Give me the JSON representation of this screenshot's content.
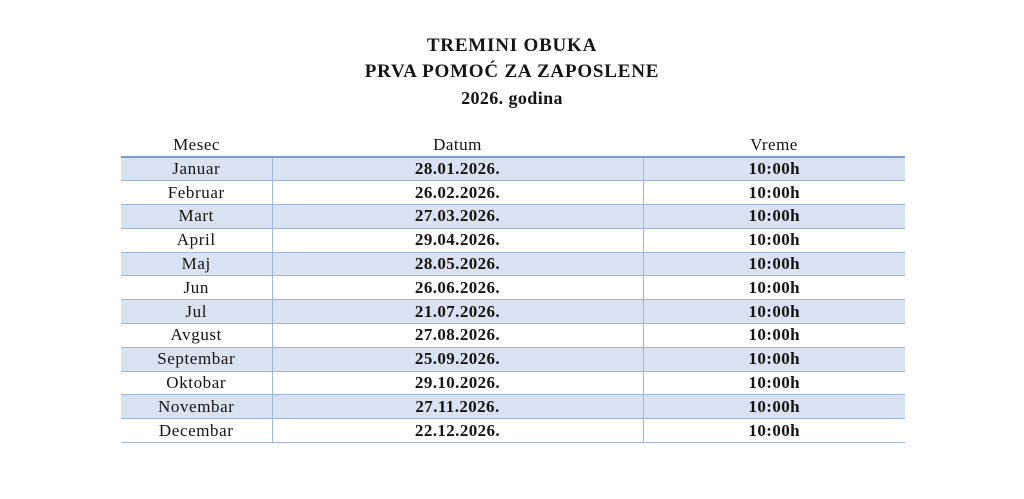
{
  "document": {
    "title_lines": [
      "TREMINI OBUKA",
      "PRVA POMOĆ ZA ZAPOSLENE",
      "2026. godina"
    ]
  },
  "table": {
    "columns": [
      "Mesec",
      "Datum",
      "Vreme"
    ],
    "rows": [
      {
        "month": "Januar",
        "date": "28.01.2026.",
        "time": "10:00h"
      },
      {
        "month": "Februar",
        "date": "26.02.2026.",
        "time": "10:00h"
      },
      {
        "month": "Mart",
        "date": "27.03.2026.",
        "time": "10:00h"
      },
      {
        "month": "April",
        "date": "29.04.2026.",
        "time": "10:00h"
      },
      {
        "month": "Maj",
        "date": "28.05.2026.",
        "time": "10:00h"
      },
      {
        "month": "Jun",
        "date": "26.06.2026.",
        "time": "10:00h"
      },
      {
        "month": "Jul",
        "date": "21.07.2026.",
        "time": "10:00h"
      },
      {
        "month": "Avgust",
        "date": "27.08.2026.",
        "time": "10:00h"
      },
      {
        "month": "Septembar",
        "date": "25.09.2026.",
        "time": "10:00h"
      },
      {
        "month": "Oktobar",
        "date": "29.10.2026.",
        "time": "10:00h"
      },
      {
        "month": "Novembar",
        "date": "27.11.2026.",
        "time": "10:00h"
      },
      {
        "month": "Decembar",
        "date": "22.12.2026.",
        "time": "10:00h"
      }
    ]
  },
  "colors": {
    "row_band_fill": "#d9e2f1",
    "inner_border": "#9fb6dc",
    "header_border": "#7e9bcd",
    "text": "#141414"
  }
}
